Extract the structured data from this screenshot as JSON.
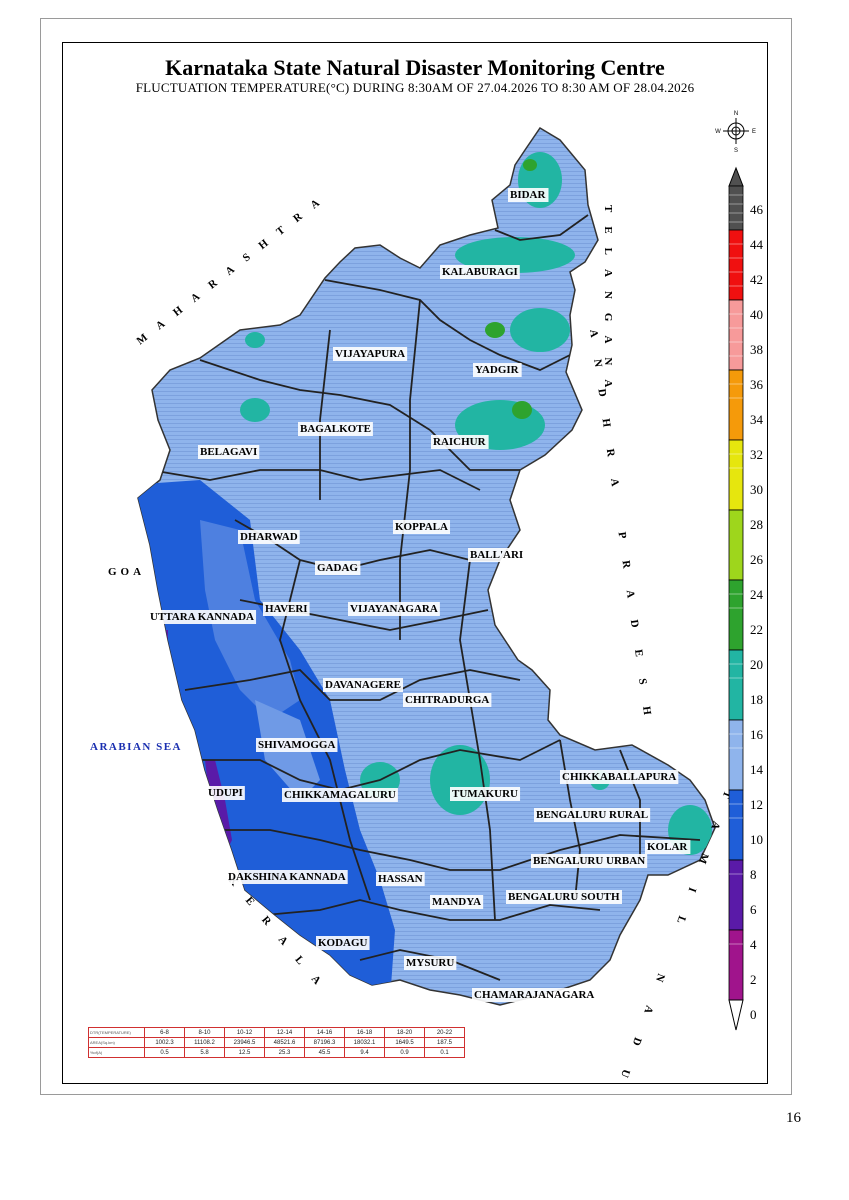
{
  "header": {
    "title": "Karnataka State Natural Disaster Monitoring Centre",
    "subtitle": "FLUCTUATION TEMPERATURE(°C) DURING 8:30AM OF 27.04.2026 TO 8:30 AM OF 28.04.2026"
  },
  "compass": {
    "n": "N",
    "s": "S",
    "e": "E",
    "w": "W"
  },
  "neighbors": {
    "maharashtra": "MAHARASHTRA",
    "goa": "GOA",
    "arabian_sea": "ARABIAN SEA",
    "kerala": "KERALA",
    "tamil_nadu": "TAMIL NADU",
    "andhra_pradesh": "ANDHRA PRADESH",
    "telangana": "TELANGANA"
  },
  "districts": [
    "BIDAR",
    "KALABURAGI",
    "VIJAYAPURA",
    "YADGIR",
    "BAGALKOTE",
    "BELAGAVI",
    "RAICHUR",
    "DHARWAD",
    "KOPPALA",
    "GADAG",
    "BALL'ARI",
    "HAVERI",
    "VIJAYANAGARA",
    "UTTARA KANNADA",
    "DAVANAGERE",
    "CHITRADURGA",
    "SHIVAMOGGA",
    "CHIKKABALLAPURA",
    "UDUPI",
    "CHIKKAMAGALURU",
    "TUMAKURU",
    "BENGALURU RURAL",
    "KOLAR",
    "BENGALURU URBAN",
    "HASSAN",
    "DAKSHINA KANNADA",
    "MANDYA",
    "BENGALURU SOUTH",
    "KODAGU",
    "MYSURU",
    "CHAMARAJANAGARA"
  ],
  "legend": {
    "ticks": [
      "46",
      "44",
      "42",
      "40",
      "38",
      "36",
      "34",
      "32",
      "30",
      "28",
      "26",
      "24",
      "22",
      "20",
      "18",
      "16",
      "14",
      "12",
      "10",
      "8",
      "6",
      "4",
      "2",
      "0"
    ],
    "colors": {
      "0-4": "#a0148c",
      "4-8": "#5a1aa8",
      "8-12": "#1f5ed8",
      "12-16": "#8fb4ec",
      "16-20": "#22b5a3",
      "20-24": "#2ea32e",
      "24-28": "#9ed61c",
      "28-32": "#e6e60e",
      "32-36": "#f59a0a",
      "36-40": "#f79a9a",
      "40-44": "#f01010",
      "44-46": "#505050"
    }
  },
  "stats_table": {
    "row_labels": [
      "DTR(TEMPERATURE)",
      "AREA(Sq.km)",
      "%of(A)"
    ],
    "ranges": [
      "6-8",
      "8-10",
      "10-12",
      "12-14",
      "14-16",
      "16-18",
      "18-20",
      "20-22"
    ],
    "area": [
      "1002.3",
      "11108.2",
      "23946.5",
      "48521.6",
      "87196.3",
      "18032.1",
      "1649.5",
      "187.5"
    ],
    "percent": [
      "0.5",
      "5.8",
      "12.5",
      "25.3",
      "45.5",
      "9.4",
      "0.9",
      "0.1"
    ]
  },
  "page_number": "16"
}
